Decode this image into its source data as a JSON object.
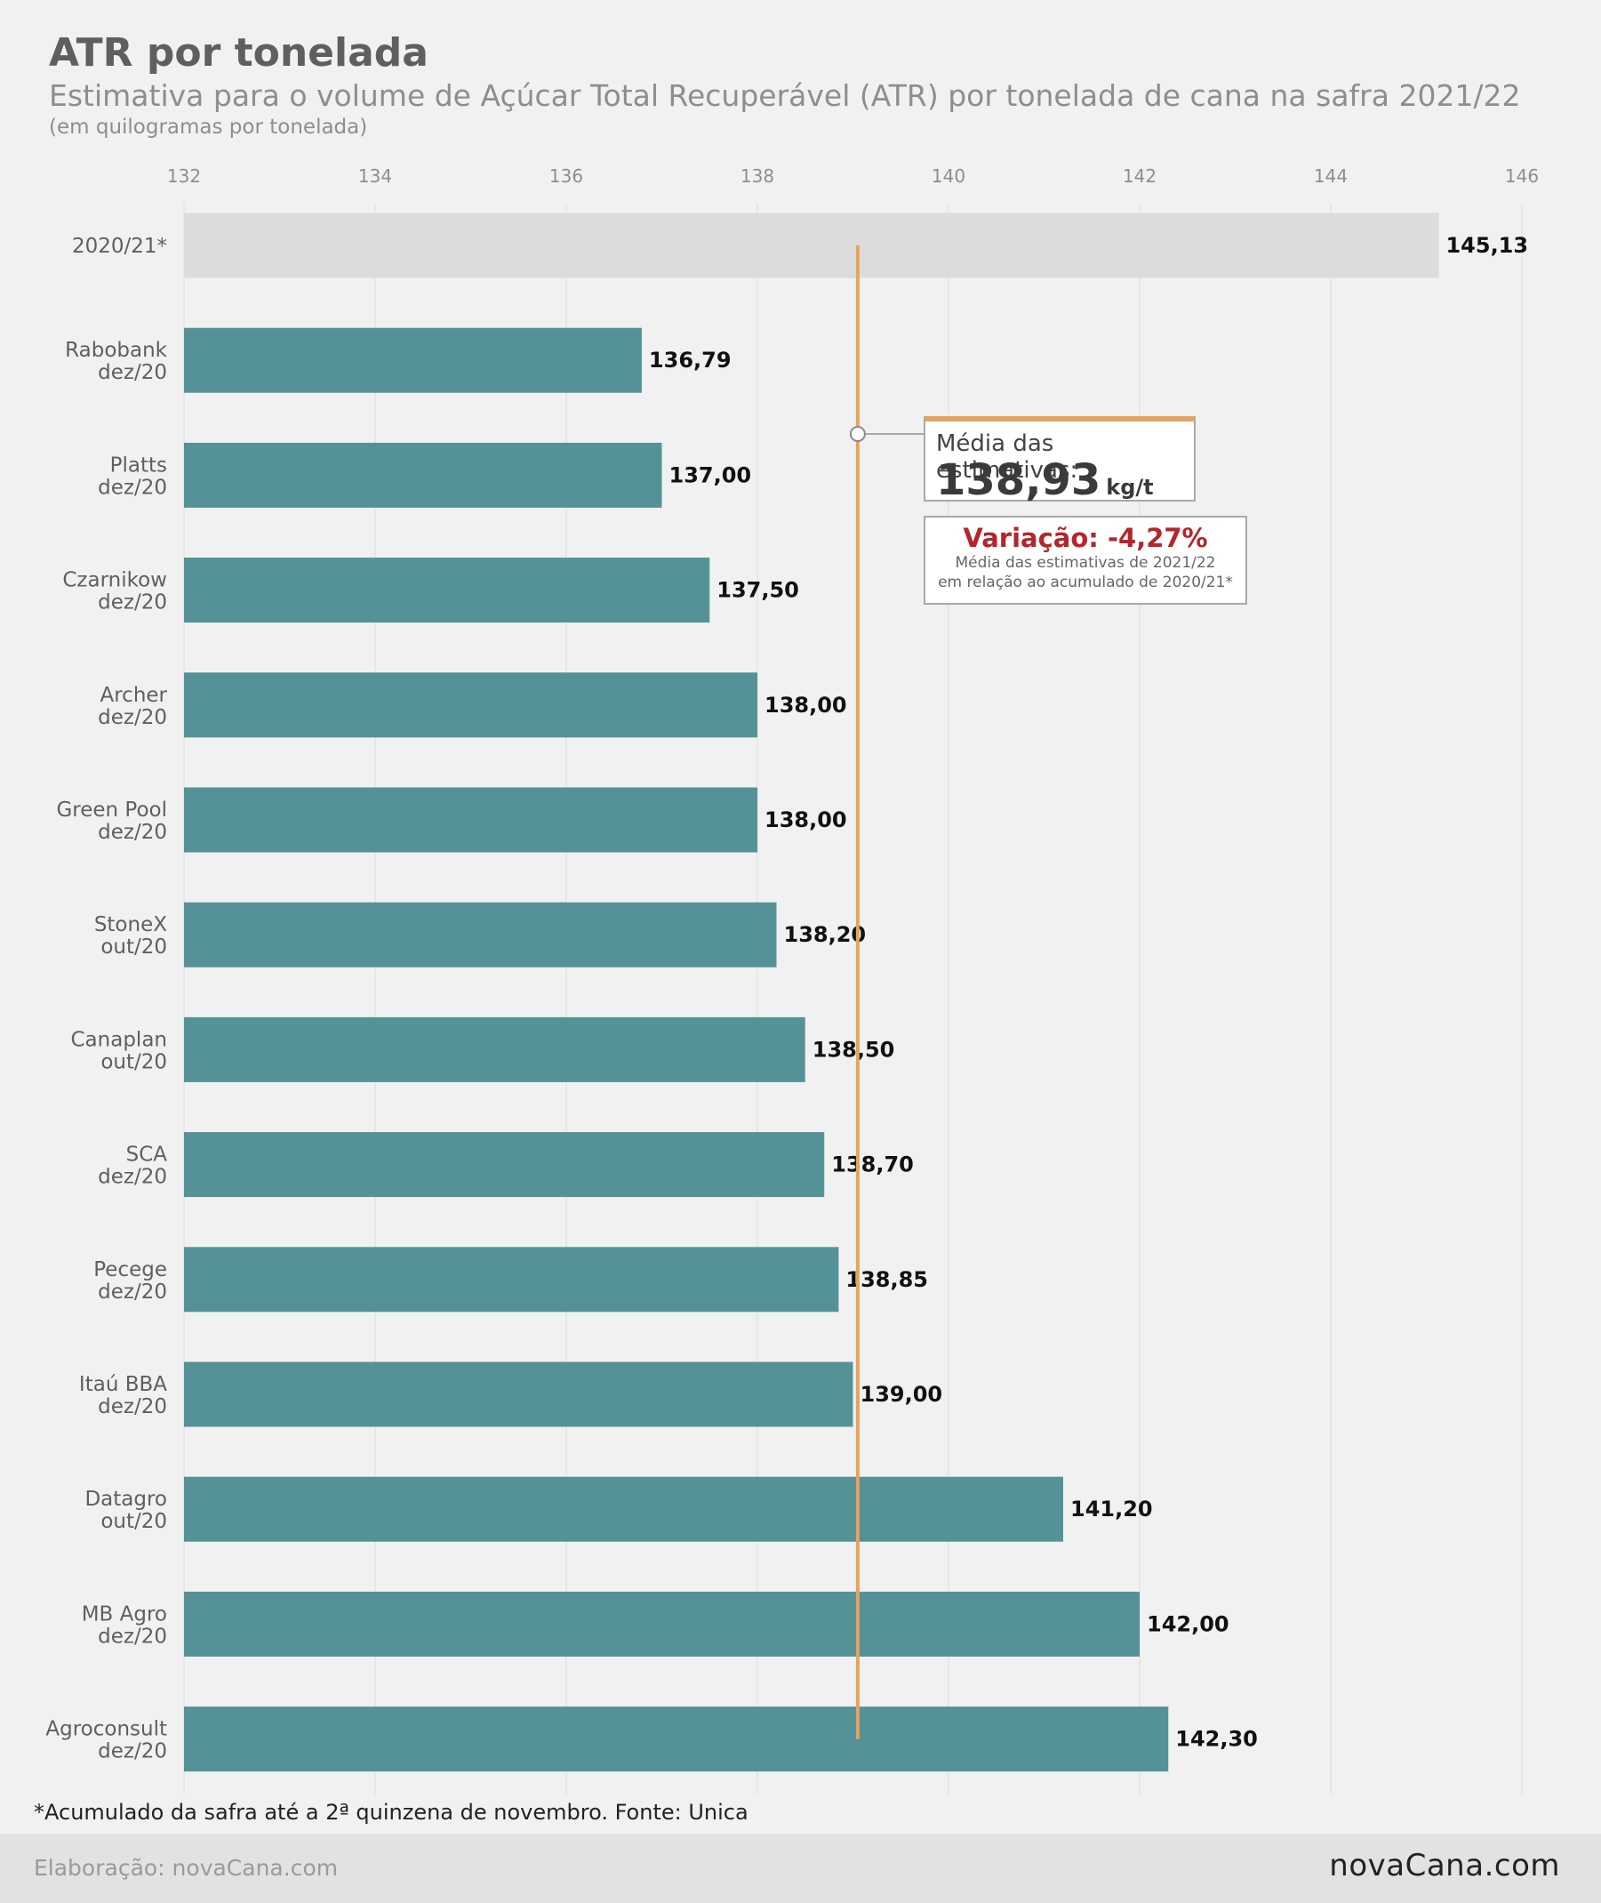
{
  "header": {
    "title": "ATR por tonelada",
    "subtitle": "Estimativa para o volume de Açúcar Total Recuperável (ATR) por tonelada de cana na safra 2021/22",
    "unit": "(em quilogramas por tonelada)"
  },
  "chart_data": {
    "type": "bar",
    "orientation": "horizontal",
    "title": "ATR por tonelada",
    "xlim": [
      132,
      146
    ],
    "xticks": [
      132,
      134,
      136,
      138,
      140,
      142,
      144,
      146
    ],
    "grid": true,
    "categories": [
      [
        "2020/21*"
      ],
      [
        "Rabobank",
        "dez/20"
      ],
      [
        "Platts",
        "dez/20"
      ],
      [
        "Czarnikow",
        "dez/20"
      ],
      [
        "Archer",
        "dez/20"
      ],
      [
        "Green Pool",
        "dez/20"
      ],
      [
        "StoneX",
        "out/20"
      ],
      [
        "Canaplan",
        "out/20"
      ],
      [
        "SCA",
        "dez/20"
      ],
      [
        "Pecege",
        "dez/20"
      ],
      [
        "Itaú BBA",
        "dez/20"
      ],
      [
        "Datagro",
        "out/20"
      ],
      [
        "MB Agro",
        "dez/20"
      ],
      [
        "Agroconsult",
        "dez/20"
      ]
    ],
    "values": [
      145.13,
      136.79,
      137.0,
      137.5,
      138.0,
      138.0,
      138.2,
      138.5,
      138.7,
      138.85,
      139.0,
      141.2,
      142.0,
      142.3
    ],
    "value_labels": [
      "145,13",
      "136,79",
      "137,00",
      "137,50",
      "138,00",
      "138,00",
      "138,20",
      "138,50",
      "138,70",
      "138,85",
      "139,00",
      "141,20",
      "142,00",
      "142,30"
    ],
    "highlight_first": true,
    "reference_line": {
      "value": 139.05
    },
    "colors": {
      "bar": "#559298",
      "reference_bar": "#dcdcdc",
      "reference_line": "#e6a35d",
      "variation": "#b5252b"
    }
  },
  "callouts": {
    "average_label": "Média das estimativas:",
    "average_value": "138,93",
    "average_unit": "kg/t",
    "variation_label": "Variação: -4,27%",
    "variation_desc_1": "Média das estimativas de 2021/22",
    "variation_desc_2": "em relação ao acumulado de 2020/21*"
  },
  "footer": {
    "note": "*Acumulado da safra até a 2ª quinzena de novembro. Fonte: Unica",
    "credit": "Elaboração: novaCana.com",
    "logo": "novaCana.com"
  }
}
